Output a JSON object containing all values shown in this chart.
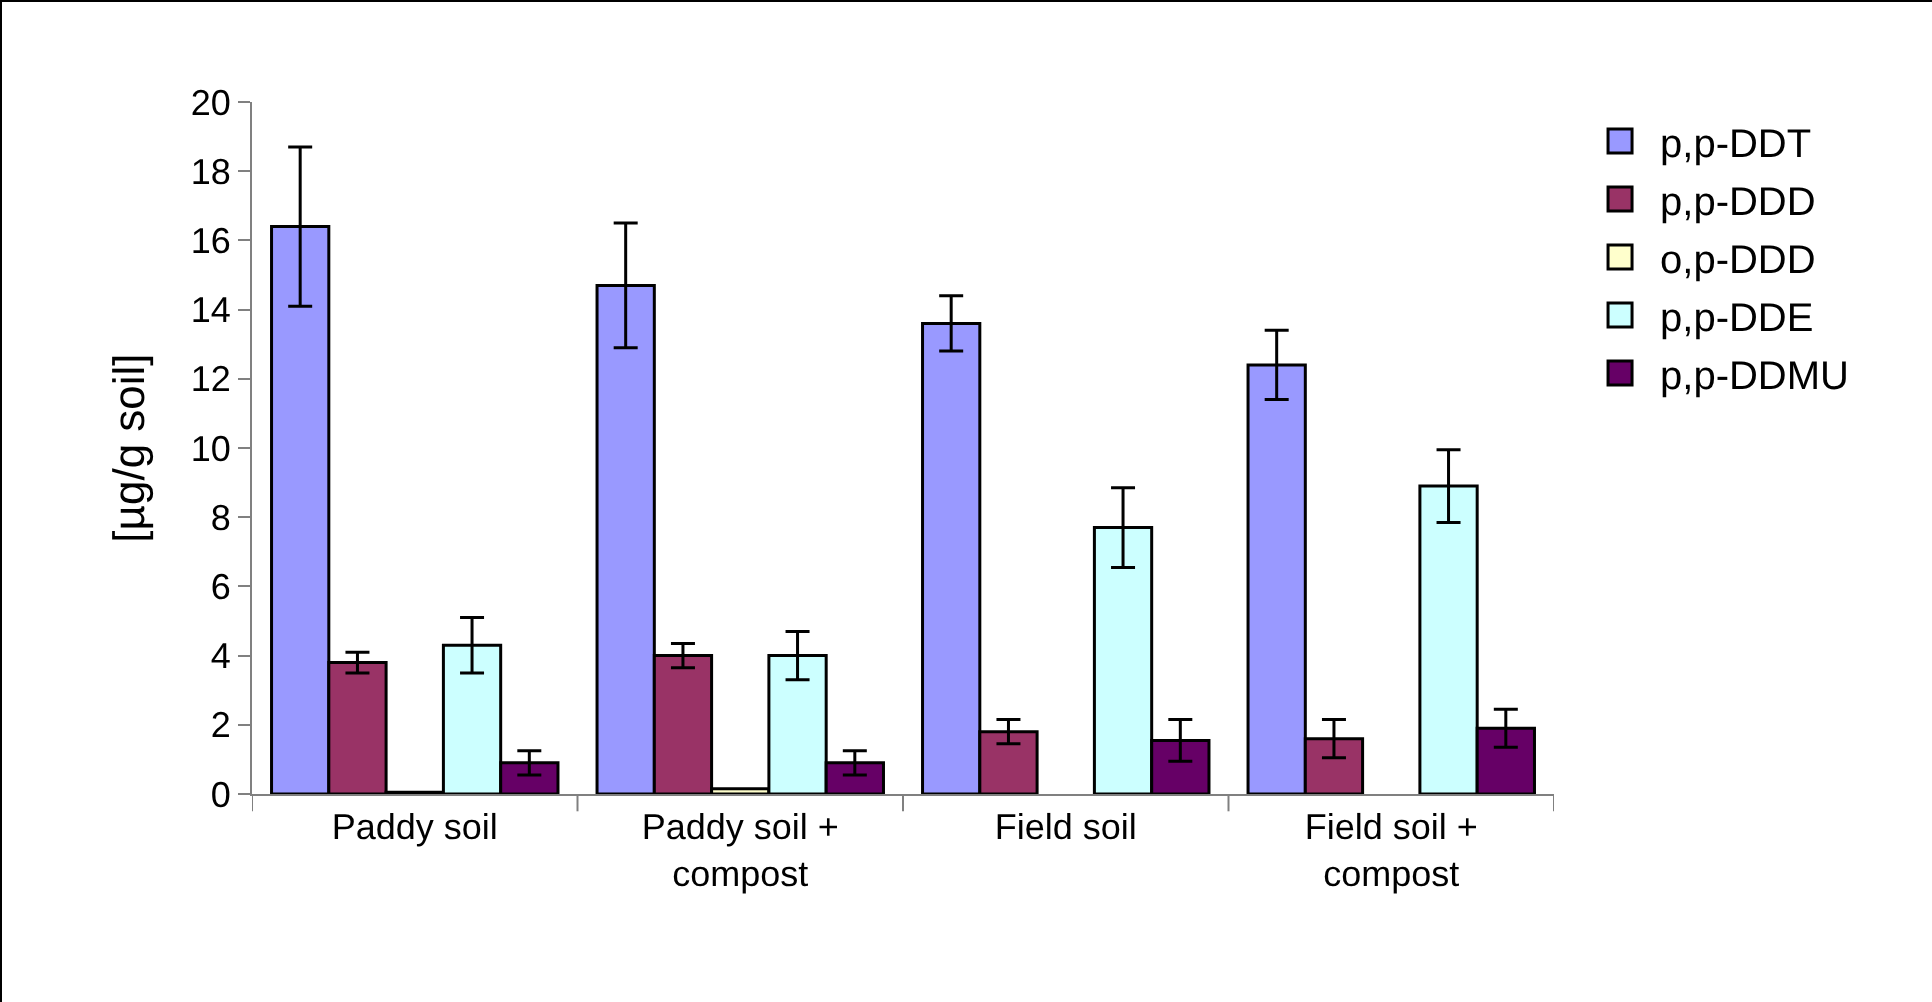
{
  "chart_data": {
    "type": "bar",
    "ylabel": "[µg/g soil]",
    "categories": [
      "Paddy soil",
      "Paddy soil +\ncompost",
      "Field soil",
      "Field soil +\ncompost"
    ],
    "series": [
      {
        "name": "p,p-DDT",
        "color": "#9999ff",
        "values": [
          16.4,
          14.7,
          13.6,
          12.4
        ],
        "errors": [
          2.3,
          1.8,
          0.8,
          1.0
        ]
      },
      {
        "name": "p,p-DDD",
        "color": "#993366",
        "values": [
          3.8,
          4.0,
          1.8,
          1.6
        ],
        "errors": [
          0.3,
          0.35,
          0.35,
          0.55
        ]
      },
      {
        "name": "o,p-DDD",
        "color": "#ffffcc",
        "values": [
          0.05,
          0.15,
          0,
          0
        ]
      },
      {
        "name": "p,p-DDE",
        "color": "#ccffff",
        "values": [
          4.3,
          4.0,
          7.7,
          8.9
        ],
        "errors": [
          0.8,
          0.7,
          1.15,
          1.05
        ]
      },
      {
        "name": "p,p-DDMU",
        "color": "#660066",
        "values": [
          0.9,
          0.9,
          1.55,
          1.9
        ],
        "errors": [
          0.35,
          0.35,
          0.6,
          0.55
        ]
      }
    ],
    "ylim": [
      0,
      20
    ],
    "yticks": [
      0,
      2,
      4,
      6,
      8,
      10,
      12,
      14,
      16,
      18,
      20
    ],
    "grid": false,
    "legend": "top right"
  }
}
